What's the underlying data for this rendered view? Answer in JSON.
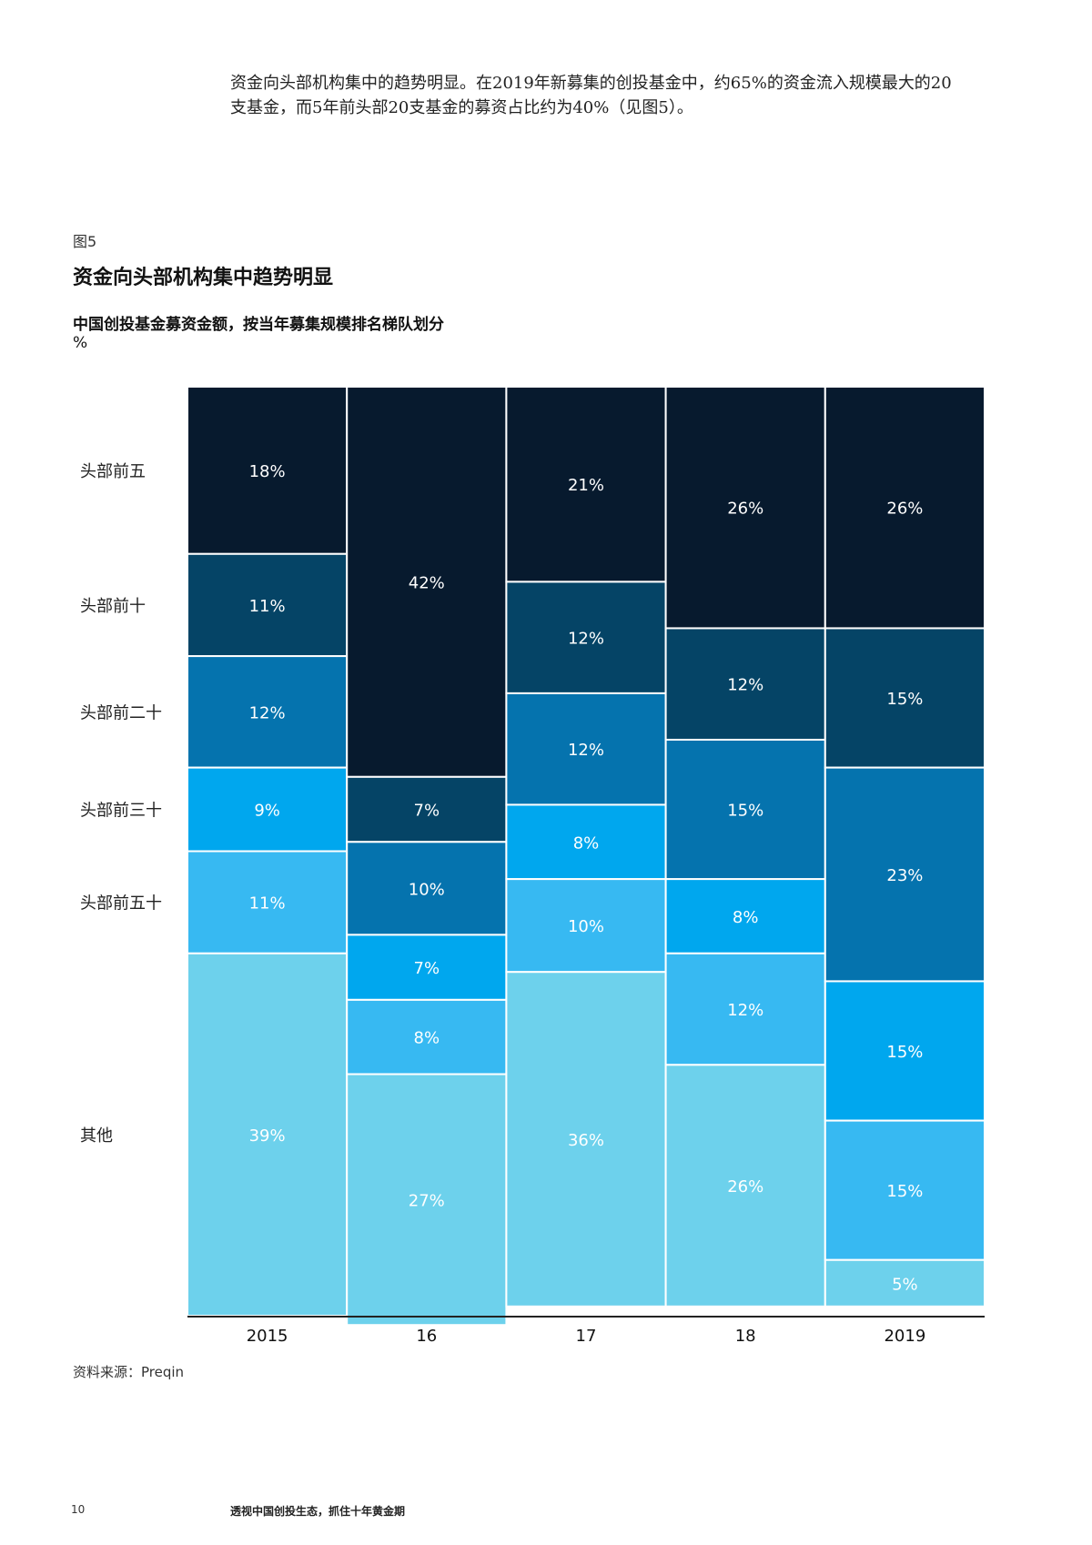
{
  "intro": {
    "line1": "资金向头部机构集中的趋势明显。在2019年新募集的创投基金中，约65%的资金流入规模最大的20",
    "line2": "支基金，而5年前头部20支基金的募资占比约为40%（见图5）。"
  },
  "figure": {
    "label": "图5",
    "title": "资金向头部机构集中趋势明显"
  },
  "chart_data": {
    "type": "bar",
    "stacked": true,
    "variable_width": true,
    "title": "中国创投基金募资金额，按当年募集规模排名梯队划分",
    "unit": "%",
    "categories": [
      "2015",
      "16",
      "17",
      "18",
      "2019"
    ],
    "series": [
      {
        "name": "头部前五",
        "values": [
          18,
          42,
          21,
          26,
          26
        ],
        "color": "#071a2e"
      },
      {
        "name": "头部前十",
        "values": [
          11,
          7,
          12,
          12,
          15
        ],
        "color": "#054466"
      },
      {
        "name": "头部前二十",
        "values": [
          12,
          10,
          12,
          15,
          23
        ],
        "color": "#0573ae"
      },
      {
        "name": "头部前三十",
        "values": [
          9,
          7,
          8,
          8,
          15
        ],
        "color": "#00a7ee"
      },
      {
        "name": "头部前五十",
        "values": [
          11,
          8,
          10,
          12,
          15
        ],
        "color": "#37b9f2"
      },
      {
        "name": "其他",
        "values": [
          39,
          27,
          36,
          26,
          5
        ],
        "color": "#6dd1ec"
      }
    ],
    "labels": [
      [
        "18%",
        "11%",
        "12%",
        "9%",
        "11%",
        "39%"
      ],
      [
        "42%",
        "7%",
        "10%",
        "7%",
        "8%",
        "27%"
      ],
      [
        "21%",
        "12%",
        "12%",
        "8%",
        "10%",
        "36%"
      ],
      [
        "26%",
        "12%",
        "15%",
        "8%",
        "12%",
        "26%"
      ],
      [
        "26%",
        "15%",
        "23%",
        "15%",
        "15%",
        "5%"
      ]
    ],
    "legend_position": "left",
    "ylim": [
      0,
      100
    ]
  },
  "source": "资料来源：Preqin",
  "footer": {
    "page_number": "10",
    "doc_title": "透视中国创投生态，抓住十年黄金期"
  }
}
